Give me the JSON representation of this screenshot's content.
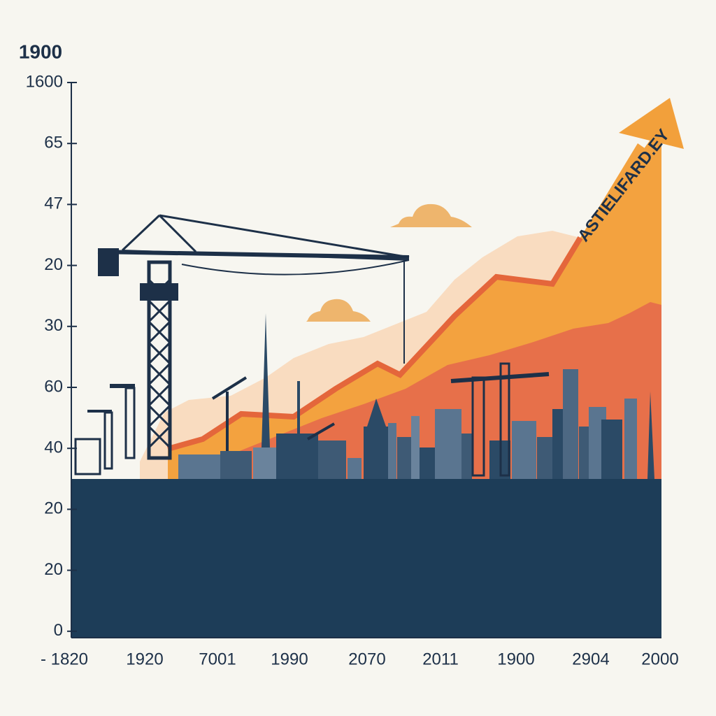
{
  "corner_label": "1900",
  "y_axis_labels": [
    "1600",
    "65",
    "47",
    "20",
    "30",
    "60",
    "40",
    "20",
    "20",
    "0"
  ],
  "x_axis_labels": [
    "- 1820",
    "1920",
    "7001",
    "1990",
    "2070",
    "2011",
    "1900",
    "2904",
    "2000"
  ],
  "arrow_label": "ASTIELIFARD.EY"
}
